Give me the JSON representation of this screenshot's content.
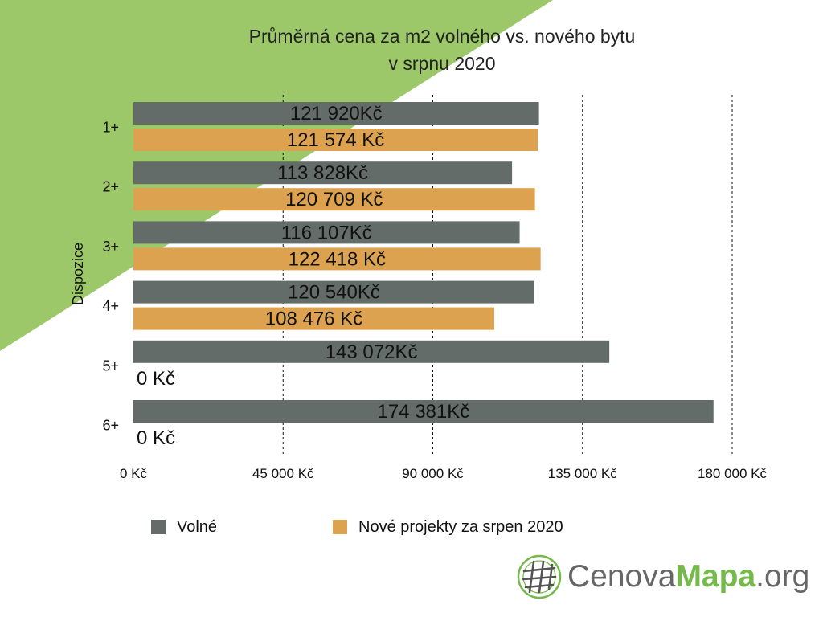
{
  "colors": {
    "background_accent": "#9cc86a",
    "series_free": "#646c69",
    "series_new": "#dca250",
    "gridline": "#111111",
    "logo_green": "#75b94a",
    "logo_gray": "#666666"
  },
  "chart_data": {
    "type": "bar",
    "orientation": "horizontal",
    "title": "Průměrná cena za m2 volného vs. nového bytu",
    "subtitle": "v srpnu 2020",
    "ylabel": "Dispozice",
    "xlabel": "",
    "categories": [
      "1+",
      "2+",
      "3+",
      "4+",
      "5+",
      "6+"
    ],
    "series": [
      {
        "name": "Volné",
        "color": "#646c69",
        "values": [
          121920,
          113828,
          116107,
          120540,
          143072,
          174381
        ],
        "labels": [
          "121 920Kč",
          "113 828Kč",
          "116 107Kč",
          "120 540Kč",
          "143 072Kč",
          "174 381Kč"
        ]
      },
      {
        "name": "Nové projekty za srpen 2020",
        "color": "#dca250",
        "values": [
          121574,
          120709,
          122418,
          108476,
          0,
          0
        ],
        "labels": [
          "121 574 Kč",
          "120 709 Kč",
          "122 418 Kč",
          "108 476 Kč",
          "0 Kč",
          "0 Kč"
        ]
      }
    ],
    "xlim": [
      0,
      180000
    ],
    "xticks": [
      0,
      45000,
      90000,
      135000,
      180000
    ],
    "xtick_labels": [
      "0 Kč",
      "45 000 Kč",
      "90 000 Kč",
      "135 000 Kč",
      "180 000 Kč"
    ],
    "grid": "vertical dashed",
    "legend_position": "bottom"
  },
  "logo": {
    "part1": "Cenova",
    "part2": "Mapa",
    "part3": ".org",
    "icon": "globe-grid-icon"
  }
}
